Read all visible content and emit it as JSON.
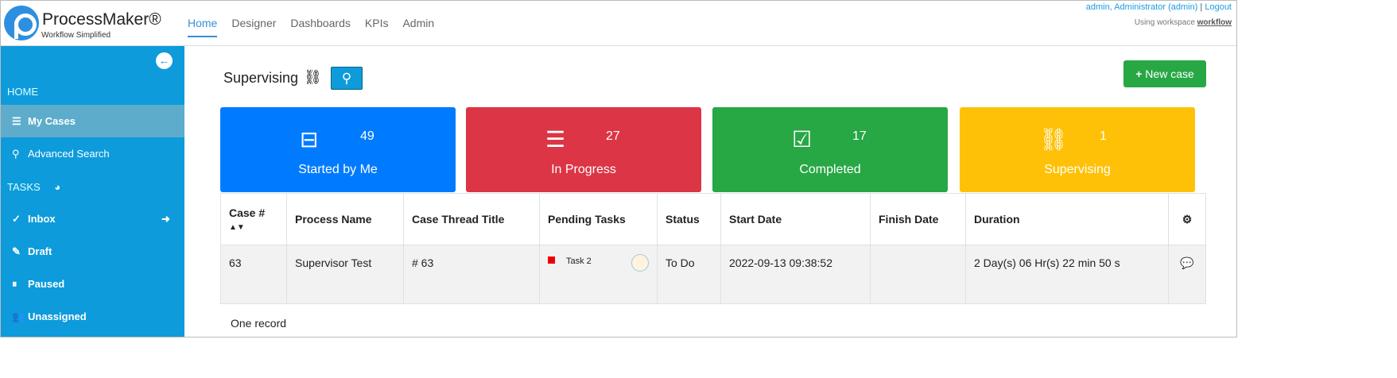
{
  "header": {
    "brand": "ProcessMaker®",
    "tagline": "Workflow Simplified",
    "nav": [
      "Home",
      "Designer",
      "Dashboards",
      "KPIs",
      "Admin"
    ],
    "active_nav": "Home",
    "user": "admin, Administrator (admin)",
    "logout": "Logout",
    "workspace_prefix": "Using workspace ",
    "workspace": "workflow"
  },
  "sidebar": {
    "home_section": "HOME",
    "items_home": [
      {
        "label": "My Cases",
        "icon": "sliders-icon"
      },
      {
        "label": "Advanced Search",
        "icon": "search-icon"
      }
    ],
    "tasks_section": "TASKS",
    "items_tasks": [
      {
        "label": "Inbox",
        "icon": "check-circle-icon"
      },
      {
        "label": "Draft",
        "icon": "edit-icon"
      },
      {
        "label": "Paused",
        "icon": "pause-icon"
      },
      {
        "label": "Unassigned",
        "icon": "users-icon"
      }
    ]
  },
  "main": {
    "title": "Supervising",
    "new_case": "New case",
    "cards": [
      {
        "label": "Started by Me",
        "count": "49",
        "color": "#007bff",
        "icon": "inbox-icon"
      },
      {
        "label": "In Progress",
        "count": "27",
        "color": "#dc3545",
        "icon": "tasks-icon"
      },
      {
        "label": "Completed",
        "count": "17",
        "color": "#28a745",
        "icon": "check-square-icon"
      },
      {
        "label": "Supervising",
        "count": "1",
        "color": "#ffc107",
        "icon": "binoculars-icon"
      }
    ],
    "columns": [
      "Case #",
      "Process Name",
      "Case Thread Title",
      "Pending Tasks",
      "Status",
      "Start Date",
      "Finish Date",
      "Duration"
    ],
    "rows": [
      {
        "case": "63",
        "process": "Supervisor Test",
        "title": "# 63",
        "task": "Task 2",
        "status": "To Do",
        "start": "2022-09-13 09:38:52",
        "finish": "",
        "duration": "2 Day(s) 06 Hr(s) 22 min 50 s"
      }
    ],
    "record_count": "One record"
  }
}
